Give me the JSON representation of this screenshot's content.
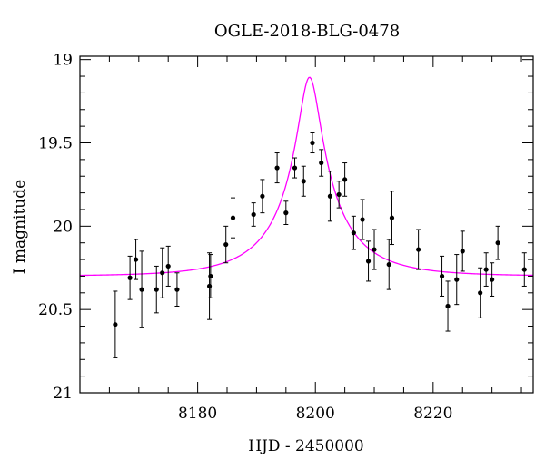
{
  "chart_data": {
    "type": "scatter",
    "title": "OGLE-2018-BLG-0478",
    "xlabel": "HJD - 2450000",
    "ylabel": "I magnitude",
    "xlim": [
      8160,
      8237
    ],
    "ylim": [
      21,
      18.98
    ],
    "y_inverted": true,
    "grid": false,
    "xticks": [
      8180,
      8200,
      8220
    ],
    "xtick_labels": [
      "8180",
      "8200",
      "8220"
    ],
    "yticks": [
      19,
      19.5,
      20,
      20.5,
      21
    ],
    "ytick_labels": [
      "19",
      "19.5",
      "20",
      "20.5",
      "21"
    ],
    "model_color": "#ff00ff",
    "point_color": "#000000",
    "model": {
      "t0": 8199.0,
      "u0": 0.15,
      "tE": 12.0,
      "baseline": 20.3,
      "blend": 0.35
    },
    "series": [
      {
        "points": [
          {
            "x": 8166.0,
            "y": 20.59,
            "err": 0.2
          },
          {
            "x": 8168.5,
            "y": 20.31,
            "err": 0.13
          },
          {
            "x": 8169.5,
            "y": 20.2,
            "err": 0.12
          },
          {
            "x": 8170.5,
            "y": 20.38,
            "err": 0.23
          },
          {
            "x": 8173.0,
            "y": 20.38,
            "err": 0.14
          },
          {
            "x": 8174.0,
            "y": 20.28,
            "err": 0.15
          },
          {
            "x": 8175.0,
            "y": 20.24,
            "err": 0.12
          },
          {
            "x": 8176.5,
            "y": 20.38,
            "err": 0.1
          },
          {
            "x": 8182.0,
            "y": 20.36,
            "err": 0.2
          },
          {
            "x": 8182.2,
            "y": 20.3,
            "err": 0.13
          },
          {
            "x": 8184.8,
            "y": 20.11,
            "err": 0.11
          },
          {
            "x": 8186.0,
            "y": 19.95,
            "err": 0.12
          },
          {
            "x": 8189.5,
            "y": 19.93,
            "err": 0.07
          },
          {
            "x": 8191.0,
            "y": 19.82,
            "err": 0.1
          },
          {
            "x": 8193.5,
            "y": 19.65,
            "err": 0.09
          },
          {
            "x": 8195.0,
            "y": 19.92,
            "err": 0.07
          },
          {
            "x": 8196.5,
            "y": 19.65,
            "err": 0.06
          },
          {
            "x": 8198.0,
            "y": 19.73,
            "err": 0.09
          },
          {
            "x": 8199.5,
            "y": 19.5,
            "err": 0.06
          },
          {
            "x": 8201.0,
            "y": 19.62,
            "err": 0.08
          },
          {
            "x": 8202.5,
            "y": 19.82,
            "err": 0.15
          },
          {
            "x": 8204.0,
            "y": 19.81,
            "err": 0.08
          },
          {
            "x": 8205.0,
            "y": 19.72,
            "err": 0.1
          },
          {
            "x": 8206.5,
            "y": 20.04,
            "err": 0.1
          },
          {
            "x": 8208.0,
            "y": 19.96,
            "err": 0.12
          },
          {
            "x": 8209.0,
            "y": 20.21,
            "err": 0.12
          },
          {
            "x": 8210.0,
            "y": 20.14,
            "err": 0.12
          },
          {
            "x": 8212.5,
            "y": 20.23,
            "err": 0.15
          },
          {
            "x": 8213.0,
            "y": 19.95,
            "err": 0.16
          },
          {
            "x": 8217.5,
            "y": 20.14,
            "err": 0.12
          },
          {
            "x": 8221.5,
            "y": 20.3,
            "err": 0.12
          },
          {
            "x": 8222.5,
            "y": 20.48,
            "err": 0.15
          },
          {
            "x": 8224.0,
            "y": 20.32,
            "err": 0.15
          },
          {
            "x": 8225.0,
            "y": 20.15,
            "err": 0.12
          },
          {
            "x": 8228.0,
            "y": 20.4,
            "err": 0.15
          },
          {
            "x": 8229.0,
            "y": 20.26,
            "err": 0.1
          },
          {
            "x": 8230.0,
            "y": 20.32,
            "err": 0.1
          },
          {
            "x": 8231.0,
            "y": 20.1,
            "err": 0.1
          },
          {
            "x": 8235.5,
            "y": 20.26,
            "err": 0.1
          }
        ]
      }
    ]
  }
}
